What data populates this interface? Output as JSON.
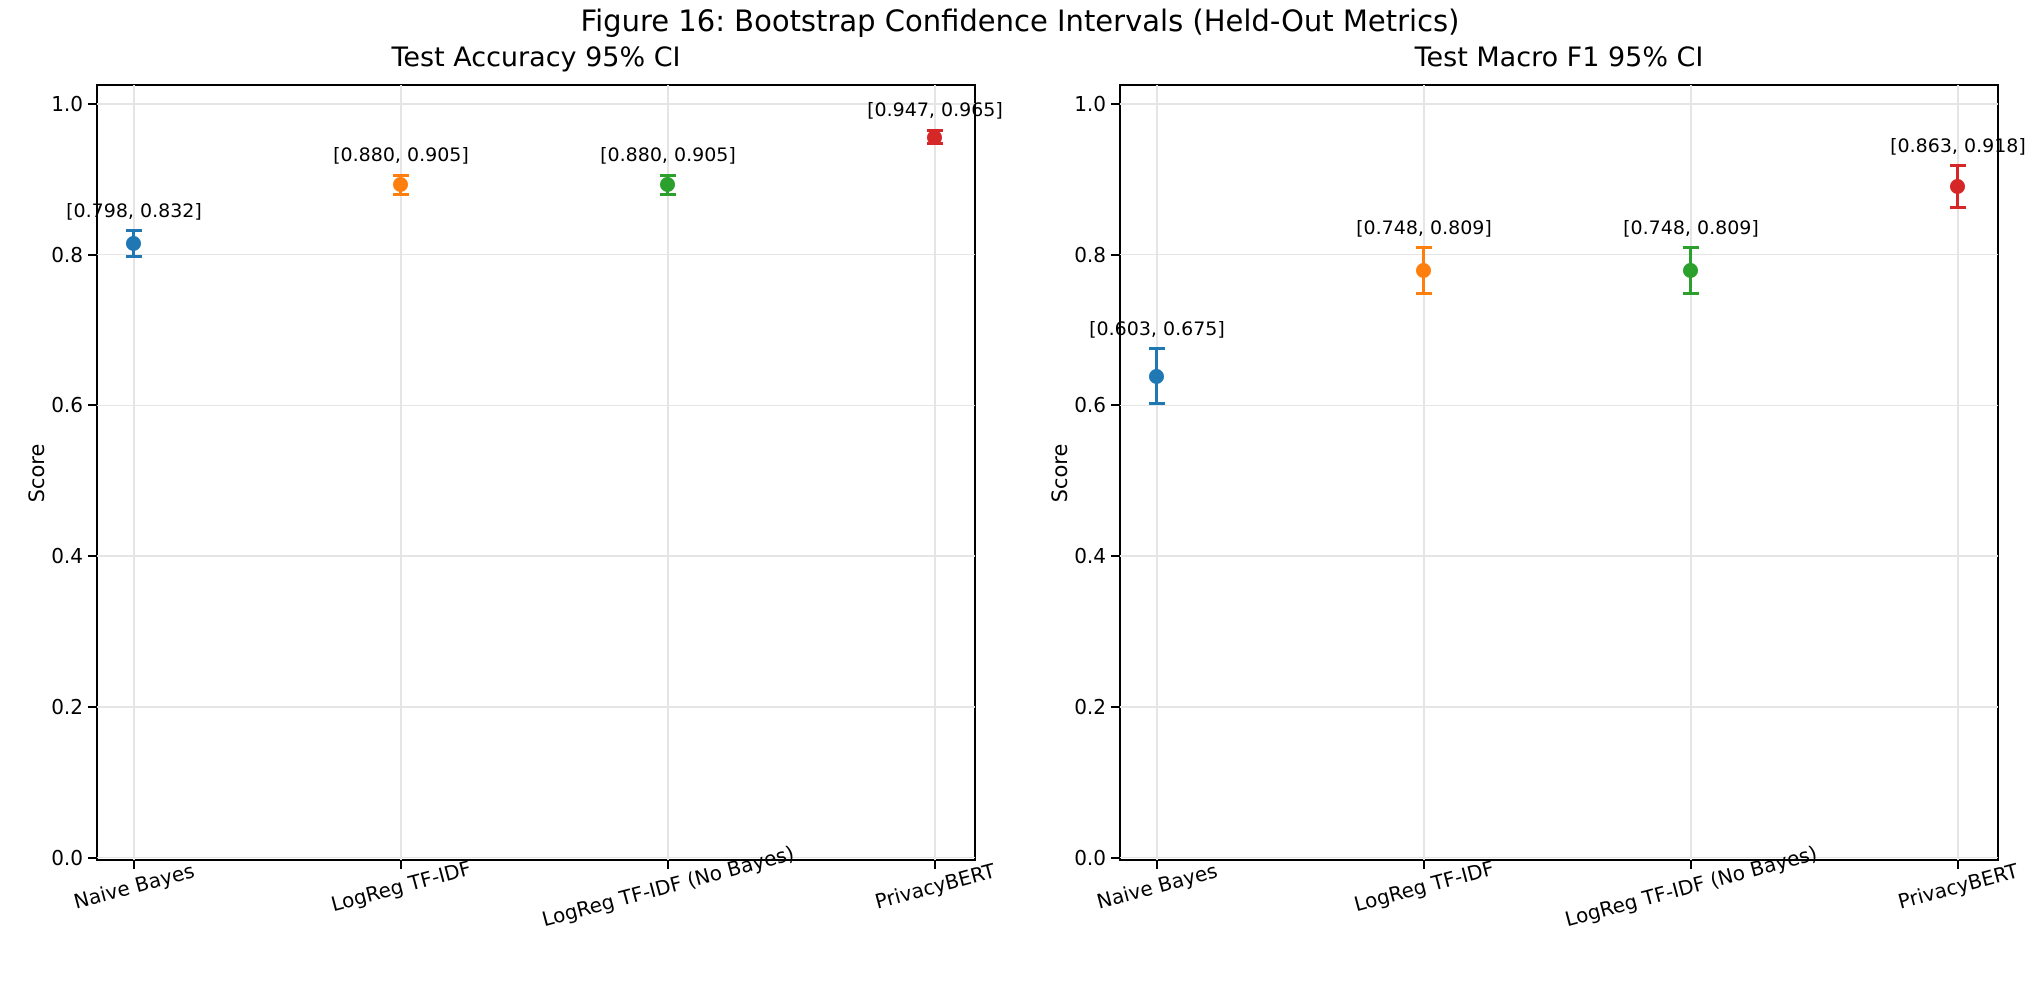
{
  "figure": {
    "suptitle": "Figure 16: Bootstrap Confidence Intervals (Held-Out Metrics)"
  },
  "chart_data": [
    {
      "type": "scatter",
      "title": "Test Accuracy 95% CI",
      "ylabel": "Score",
      "ylim": [
        0.0,
        1.0
      ],
      "yticks": [
        "0.0",
        "0.2",
        "0.4",
        "0.6",
        "0.8",
        "1.0"
      ],
      "grid": true,
      "categories": [
        "Naive Bayes",
        "LogReg TF-IDF",
        "LogReg TF-IDF (No Bayes)",
        "PrivacyBERT"
      ],
      "points": [
        {
          "model": "Naive Bayes",
          "low": 0.798,
          "high": 0.832,
          "mid": 0.815,
          "label": "[0.798, 0.832]",
          "color": "#1f77b4"
        },
        {
          "model": "LogReg TF-IDF",
          "low": 0.88,
          "high": 0.905,
          "mid": 0.8925,
          "label": "[0.880, 0.905]",
          "color": "#ff7f0e"
        },
        {
          "model": "LogReg TF-IDF (No Bayes)",
          "low": 0.88,
          "high": 0.905,
          "mid": 0.8925,
          "label": "[0.880, 0.905]",
          "color": "#2ca02c"
        },
        {
          "model": "PrivacyBERT",
          "low": 0.947,
          "high": 0.965,
          "mid": 0.956,
          "label": "[0.947, 0.965]",
          "color": "#d62728"
        }
      ]
    },
    {
      "type": "scatter",
      "title": "Test Macro F1 95% CI",
      "ylabel": "Score",
      "ylim": [
        0.0,
        1.0
      ],
      "yticks": [
        "0.0",
        "0.2",
        "0.4",
        "0.6",
        "0.8",
        "1.0"
      ],
      "grid": true,
      "categories": [
        "Naive Bayes",
        "LogReg TF-IDF",
        "LogReg TF-IDF (No Bayes)",
        "PrivacyBERT"
      ],
      "points": [
        {
          "model": "Naive Bayes",
          "low": 0.603,
          "high": 0.675,
          "mid": 0.639,
          "label": "[0.603, 0.675]",
          "color": "#1f77b4"
        },
        {
          "model": "LogReg TF-IDF",
          "low": 0.748,
          "high": 0.809,
          "mid": 0.7785,
          "label": "[0.748, 0.809]",
          "color": "#ff7f0e"
        },
        {
          "model": "LogReg TF-IDF (No Bayes)",
          "low": 0.748,
          "high": 0.809,
          "mid": 0.7785,
          "label": "[0.748, 0.809]",
          "color": "#2ca02c"
        },
        {
          "model": "PrivacyBERT",
          "low": 0.863,
          "high": 0.918,
          "mid": 0.8905,
          "label": "[0.863, 0.918]",
          "color": "#d62728"
        }
      ]
    }
  ]
}
